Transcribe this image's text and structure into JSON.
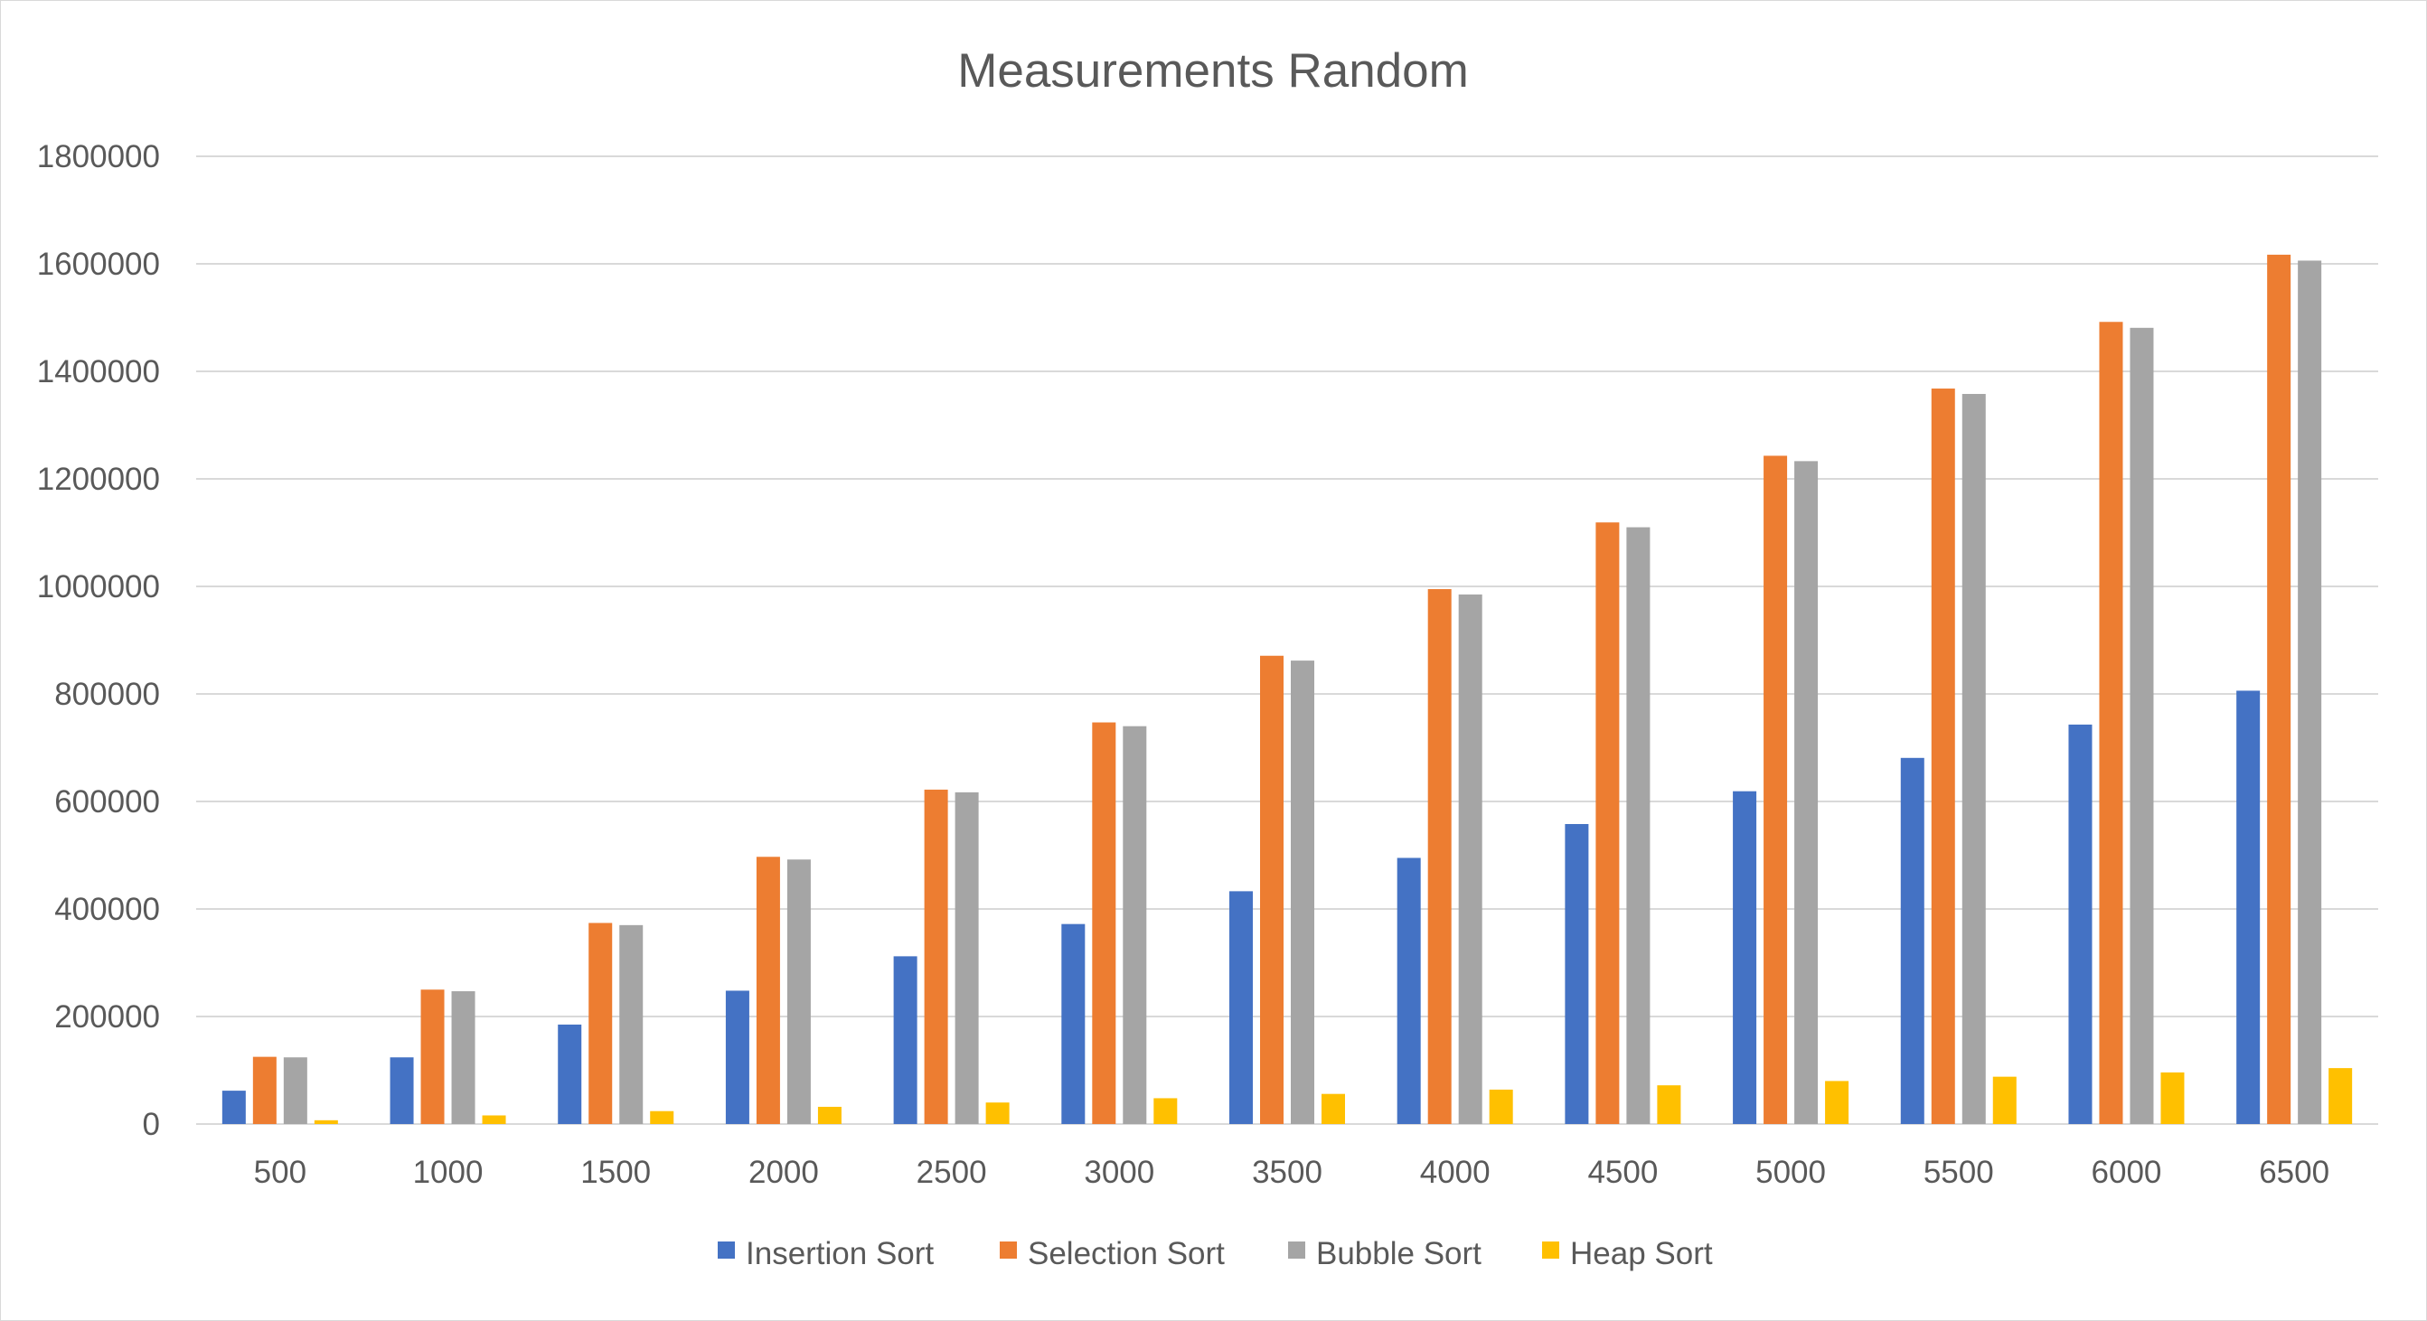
{
  "chart_data": {
    "type": "bar",
    "title": "Measurements Random",
    "xlabel": "",
    "ylabel": "",
    "categories": [
      "500",
      "1000",
      "1500",
      "2000",
      "2500",
      "3000",
      "3500",
      "4000",
      "4500",
      "5000",
      "5500",
      "6000",
      "6500"
    ],
    "ylim": [
      0,
      1800000
    ],
    "yticks": [
      "0",
      "200000",
      "400000",
      "600000",
      "800000",
      "1000000",
      "1200000",
      "1400000",
      "1600000",
      "1800000"
    ],
    "grid": true,
    "legend_position": "bottom",
    "series": [
      {
        "name": "Insertion Sort",
        "color": "#4472c4",
        "values": [
          62000,
          124000,
          185000,
          248000,
          312000,
          372000,
          433000,
          495000,
          558000,
          619000,
          681000,
          743000,
          806000
        ]
      },
      {
        "name": "Selection Sort",
        "color": "#ed7d31",
        "values": [
          125000,
          250000,
          374000,
          497000,
          622000,
          747000,
          871000,
          995000,
          1119000,
          1243000,
          1368000,
          1492000,
          1617000
        ]
      },
      {
        "name": "Bubble Sort",
        "color": "#a5a5a5",
        "values": [
          124000,
          247000,
          370000,
          492000,
          617000,
          740000,
          862000,
          985000,
          1110000,
          1233000,
          1358000,
          1481000,
          1606000
        ]
      },
      {
        "name": "Heap Sort",
        "color": "#ffc000",
        "values": [
          7000,
          16000,
          24000,
          32000,
          40000,
          48000,
          56000,
          64000,
          72000,
          80000,
          88000,
          96000,
          104000
        ]
      }
    ]
  }
}
